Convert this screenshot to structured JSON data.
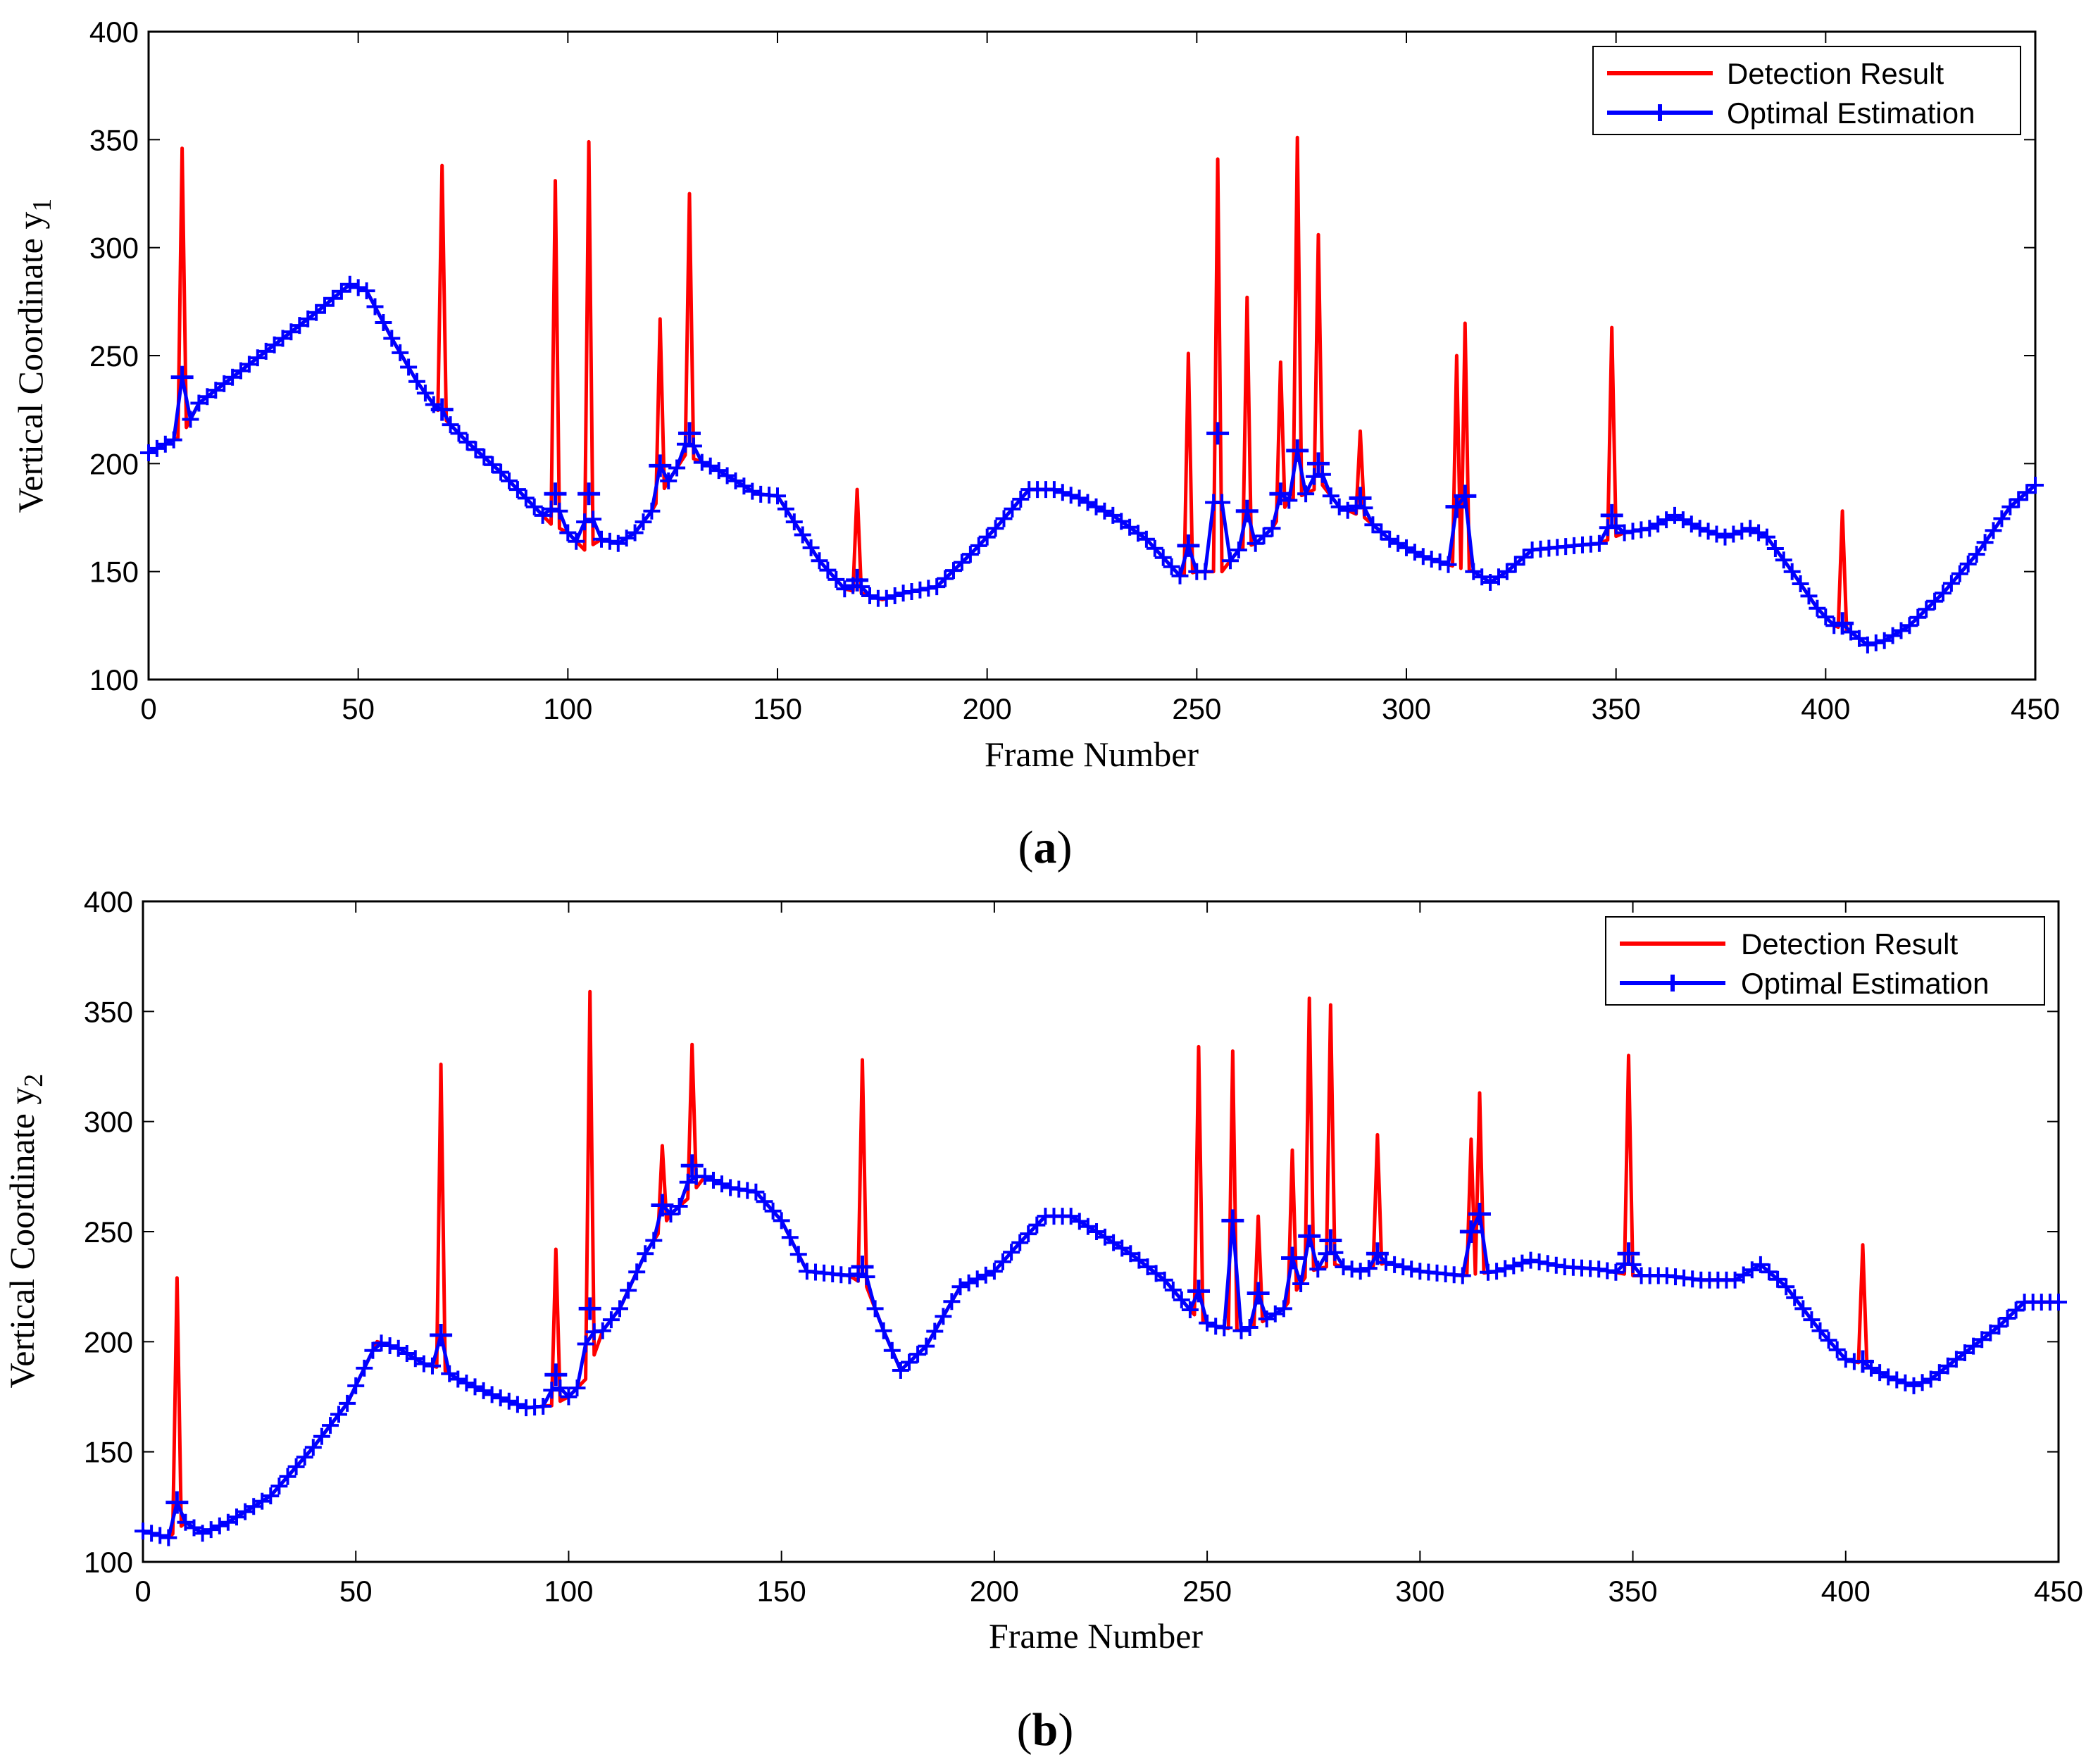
{
  "colors": {
    "detection": "#ff0000",
    "estimation": "#0000ff",
    "axis": "#000000",
    "background": "#ffffff"
  },
  "chart_data": [
    {
      "type": "line",
      "panel_label": "a",
      "xlabel": "Frame Number",
      "ylabel_main": "Vertical Coordinate y",
      "ylabel_sub": "1",
      "xlim": [
        0,
        450
      ],
      "ylim": [
        100,
        400
      ],
      "xticks": [
        0,
        50,
        100,
        150,
        200,
        250,
        300,
        350,
        400,
        450
      ],
      "yticks": [
        100,
        150,
        200,
        250,
        300,
        350,
        400
      ],
      "legend_position": "top-right",
      "series": [
        {
          "name": "Detection Result",
          "color": "#ff0000",
          "marker": "none",
          "base_curve": [
            [
              0,
              205
            ],
            [
              8,
              213
            ],
            [
              12,
              228
            ],
            [
              20,
              240
            ],
            [
              30,
              255
            ],
            [
              40,
              270
            ],
            [
              48,
              283
            ],
            [
              52,
              280
            ],
            [
              58,
              258
            ],
            [
              64,
              238
            ],
            [
              70,
              222
            ],
            [
              76,
              210
            ],
            [
              84,
              196
            ],
            [
              96,
              172
            ],
            [
              100,
              168
            ],
            [
              104,
              160
            ],
            [
              108,
              165
            ],
            [
              112,
              163
            ],
            [
              116,
              168
            ],
            [
              120,
              178
            ],
            [
              124,
              192
            ],
            [
              128,
              204
            ],
            [
              135,
              198
            ],
            [
              140,
              192
            ],
            [
              145,
              186
            ],
            [
              150,
              185
            ],
            [
              155,
              170
            ],
            [
              160,
              155
            ],
            [
              166,
              142
            ],
            [
              170,
              140
            ],
            [
              175,
              137
            ],
            [
              180,
              140
            ],
            [
              188,
              143
            ],
            [
              196,
              158
            ],
            [
              202,
              170
            ],
            [
              210,
              188
            ],
            [
              216,
              188
            ],
            [
              222,
              184
            ],
            [
              230,
              176
            ],
            [
              238,
              165
            ],
            [
              246,
              148
            ],
            [
              250,
              150
            ],
            [
              256,
              150
            ],
            [
              260,
              160
            ],
            [
              264,
              163
            ],
            [
              268,
              170
            ],
            [
              272,
              183
            ],
            [
              276,
              186
            ],
            [
              280,
              190
            ],
            [
              284,
              180
            ],
            [
              290,
              175
            ],
            [
              296,
              165
            ],
            [
              304,
              157
            ],
            [
              312,
              152
            ],
            [
              316,
              150
            ],
            [
              320,
              145
            ],
            [
              324,
              150
            ],
            [
              330,
              160
            ],
            [
              340,
              162
            ],
            [
              346,
              163
            ],
            [
              352,
              168
            ],
            [
              358,
              170
            ],
            [
              364,
              176
            ],
            [
              370,
              170
            ],
            [
              376,
              166
            ],
            [
              382,
              170
            ],
            [
              386,
              166
            ],
            [
              392,
              150
            ],
            [
              398,
              133
            ],
            [
              402,
              125
            ],
            [
              406,
              122
            ],
            [
              410,
              116
            ],
            [
              414,
              118
            ],
            [
              420,
              125
            ],
            [
              428,
              140
            ],
            [
              436,
              158
            ],
            [
              444,
              180
            ],
            [
              450,
              190
            ]
          ],
          "spikes": [
            [
              8,
              346
            ],
            [
              70,
              338
            ],
            [
              97,
              331
            ],
            [
              105,
              349
            ],
            [
              122,
              267
            ],
            [
              129,
              325
            ],
            [
              169,
              188
            ],
            [
              248,
              251
            ],
            [
              255,
              341
            ],
            [
              262,
              277
            ],
            [
              270,
              247
            ],
            [
              274,
              351
            ],
            [
              279,
              306
            ],
            [
              289,
              215
            ],
            [
              312,
              250
            ],
            [
              314,
              265
            ],
            [
              349,
              263
            ],
            [
              404,
              178
            ]
          ]
        },
        {
          "name": "Optimal Estimation",
          "color": "#0000ff",
          "marker": "+",
          "smoothed_spikes": [
            [
              8,
              240
            ],
            [
              70,
              225
            ],
            [
              97,
              186
            ],
            [
              105,
              186
            ],
            [
              122,
              199
            ],
            [
              129,
              214
            ],
            [
              169,
              146
            ],
            [
              248,
              162
            ],
            [
              255,
              214
            ],
            [
              262,
              178
            ],
            [
              270,
              186
            ],
            [
              274,
              206
            ],
            [
              279,
              200
            ],
            [
              289,
              184
            ],
            [
              312,
              180
            ],
            [
              314,
              185
            ],
            [
              349,
              176
            ],
            [
              404,
              126
            ]
          ]
        }
      ]
    },
    {
      "type": "line",
      "panel_label": "b",
      "xlabel": "Frame Number",
      "ylabel_main": "Vertical Coordinate y",
      "ylabel_sub": "2",
      "xlim": [
        0,
        450
      ],
      "ylim": [
        100,
        400
      ],
      "xticks": [
        0,
        50,
        100,
        150,
        200,
        250,
        300,
        350,
        400,
        450
      ],
      "yticks": [
        100,
        150,
        200,
        250,
        300,
        350,
        400
      ],
      "legend_position": "top-right",
      "series": [
        {
          "name": "Detection Result",
          "color": "#ff0000",
          "marker": "none",
          "base_curve": [
            [
              0,
              114
            ],
            [
              6,
              111
            ],
            [
              10,
              118
            ],
            [
              14,
              113
            ],
            [
              20,
              118
            ],
            [
              30,
              130
            ],
            [
              40,
              152
            ],
            [
              48,
              172
            ],
            [
              55,
              200
            ],
            [
              60,
              197
            ],
            [
              66,
              190
            ],
            [
              70,
              188
            ],
            [
              74,
              183
            ],
            [
              82,
              176
            ],
            [
              90,
              170
            ],
            [
              96,
              171
            ],
            [
              100,
              175
            ],
            [
              104,
              183
            ],
            [
              108,
              205
            ],
            [
              112,
              215
            ],
            [
              118,
              240
            ],
            [
              124,
              258
            ],
            [
              128,
              265
            ],
            [
              132,
              275
            ],
            [
              138,
              270
            ],
            [
              144,
              268
            ],
            [
              150,
              255
            ],
            [
              156,
              232
            ],
            [
              166,
              230
            ],
            [
              170,
              225
            ],
            [
              174,
              205
            ],
            [
              178,
              187
            ],
            [
              184,
              198
            ],
            [
              192,
              225
            ],
            [
              200,
              232
            ],
            [
              206,
              245
            ],
            [
              212,
              257
            ],
            [
              218,
              257
            ],
            [
              224,
              250
            ],
            [
              232,
              240
            ],
            [
              240,
              228
            ],
            [
              248,
              210
            ],
            [
              252,
              207
            ],
            [
              258,
              205
            ],
            [
              262,
              208
            ],
            [
              268,
              215
            ],
            [
              274,
              232
            ],
            [
              280,
              235
            ],
            [
              286,
              232
            ],
            [
              292,
              236
            ],
            [
              300,
              232
            ],
            [
              310,
              230
            ],
            [
              318,
              232
            ],
            [
              326,
              237
            ],
            [
              334,
              234
            ],
            [
              342,
              233
            ],
            [
              350,
              230
            ],
            [
              358,
              230
            ],
            [
              366,
              228
            ],
            [
              374,
              228
            ],
            [
              380,
              235
            ],
            [
              386,
              225
            ],
            [
              394,
              205
            ],
            [
              400,
              192
            ],
            [
              404,
              190
            ],
            [
              410,
              184
            ],
            [
              416,
              180
            ],
            [
              420,
              183
            ],
            [
              428,
              195
            ],
            [
              436,
              207
            ],
            [
              442,
              218
            ],
            [
              450,
              218
            ]
          ],
          "spikes": [
            [
              8,
              229
            ],
            [
              70,
              326
            ],
            [
              97,
              242
            ],
            [
              105,
              359
            ],
            [
              122,
              289
            ],
            [
              129,
              335
            ],
            [
              169,
              328
            ],
            [
              248,
              334
            ],
            [
              256,
              332
            ],
            [
              262,
              257
            ],
            [
              270,
              287
            ],
            [
              274,
              356
            ],
            [
              279,
              353
            ],
            [
              290,
              294
            ],
            [
              312,
              292
            ],
            [
              314,
              313
            ],
            [
              349,
              330
            ],
            [
              404,
              244
            ]
          ]
        },
        {
          "name": "Optimal Estimation",
          "color": "#0000ff",
          "marker": "+",
          "smoothed_spikes": [
            [
              8,
              127
            ],
            [
              70,
              203
            ],
            [
              97,
              185
            ],
            [
              105,
              215
            ],
            [
              122,
              262
            ],
            [
              129,
              280
            ],
            [
              169,
              234
            ],
            [
              248,
              223
            ],
            [
              256,
              255
            ],
            [
              262,
              222
            ],
            [
              270,
              238
            ],
            [
              274,
              248
            ],
            [
              279,
              246
            ],
            [
              290,
              240
            ],
            [
              312,
              250
            ],
            [
              314,
              258
            ],
            [
              349,
              240
            ],
            [
              404,
              191
            ]
          ]
        }
      ]
    }
  ]
}
